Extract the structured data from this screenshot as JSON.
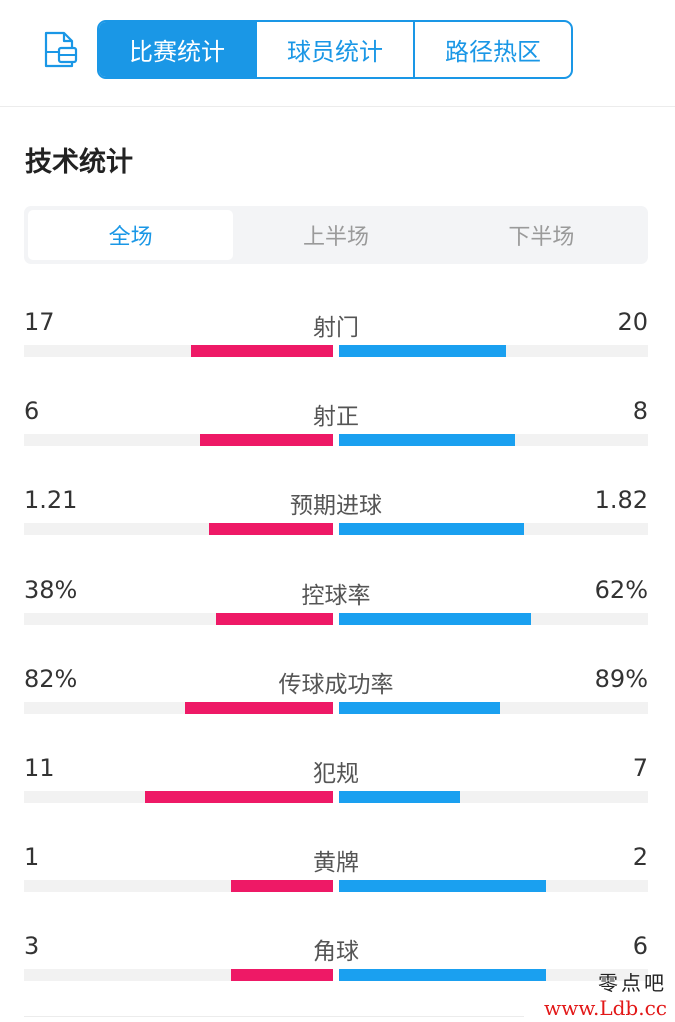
{
  "header": {
    "icon": "document-layout-icon",
    "tabs": [
      {
        "label": "比赛统计",
        "active": true
      },
      {
        "label": "球员统计",
        "active": false
      },
      {
        "label": "路径热区",
        "active": false
      }
    ],
    "accent_color": "#1a97e6"
  },
  "section": {
    "title": "技术统计",
    "period_tabs": [
      {
        "label": "全场",
        "active": true
      },
      {
        "label": "上半场",
        "active": false
      },
      {
        "label": "下半场",
        "active": false
      }
    ]
  },
  "colors": {
    "home": "#ee1966",
    "away": "#1aa0f0",
    "track": "#f2f2f2"
  },
  "stats": [
    {
      "label": "射门",
      "home": "17",
      "away": "20",
      "home_fill": 0.46,
      "away_fill": 0.54
    },
    {
      "label": "射正",
      "home": "6",
      "away": "8",
      "home_fill": 0.43,
      "away_fill": 0.57
    },
    {
      "label": "预期进球",
      "home": "1.21",
      "away": "1.82",
      "home_fill": 0.4,
      "away_fill": 0.6
    },
    {
      "label": "控球率",
      "home": "38%",
      "away": "62%",
      "home_fill": 0.38,
      "away_fill": 0.62
    },
    {
      "label": "传球成功率",
      "home": "82%",
      "away": "89%",
      "home_fill": 0.48,
      "away_fill": 0.52
    },
    {
      "label": "犯规",
      "home": "11",
      "away": "7",
      "home_fill": 0.61,
      "away_fill": 0.39
    },
    {
      "label": "黄牌",
      "home": "1",
      "away": "2",
      "home_fill": 0.33,
      "away_fill": 0.67
    },
    {
      "label": "角球",
      "home": "3",
      "away": "6",
      "home_fill": 0.33,
      "away_fill": 0.67
    }
  ],
  "watermark": {
    "line1": "零点吧",
    "line2": "www.Ldb.cc"
  }
}
